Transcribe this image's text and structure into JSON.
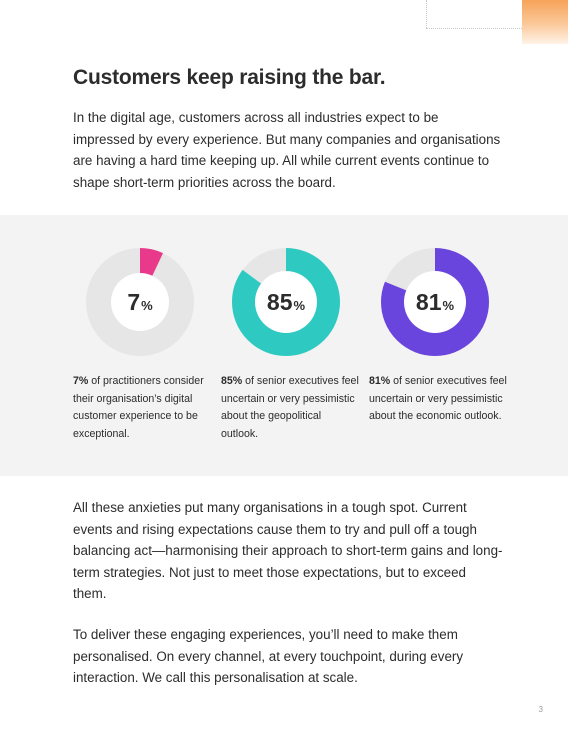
{
  "page": {
    "title": "Customers keep raising the bar.",
    "intro": "In the digital age, customers across all industries expect to be impressed by every experience. But many companies and organisations are having a hard time keeping up. All while current events continue to shape short-term priorities across the board.",
    "body_1": "All these anxieties put many organisations in a tough spot. Current events and rising expectations cause them to try and pull off a tough balancing act—harmonising their approach to short-term gains and long-term strategies. Not just to meet those expectations, but to exceed them.",
    "body_2": "To deliver these engaging experiences, you’ll need to make them personalised. On every channel, at every touchpoint, during every interaction. We call this personalisation at scale.",
    "page_number": "3"
  },
  "stats": [
    {
      "number": "7",
      "unit": "%",
      "value": 7,
      "color": "#e8398a",
      "lead": "7%",
      "text": " of practitioners consider their organisation’s digital customer experience to be exceptional."
    },
    {
      "number": "85",
      "unit": "%",
      "value": 85,
      "color": "#2ec9c1",
      "lead": "85%",
      "text": " of senior executives feel uncertain or very pessimistic about the geopolitical outlook."
    },
    {
      "number": "81",
      "unit": "%",
      "value": 81,
      "color": "#6a45dd",
      "lead": "81%",
      "text": " of senior executives feel uncertain or very pessimistic about the economic outlook."
    }
  ],
  "colors": {
    "track": "#e6e6e6",
    "band_background": "#f3f3f3",
    "accent": "#f7a35a"
  }
}
